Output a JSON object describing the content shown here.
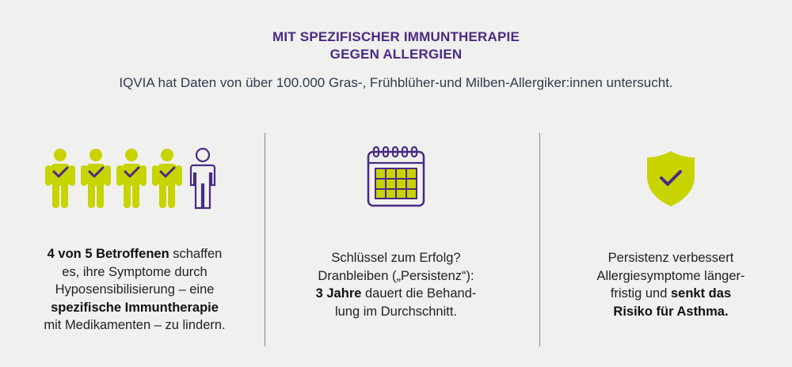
{
  "header": {
    "title_line1": "MIT SPEZIFISCHER IMMUNTHERAPIE",
    "title_line2": "GEGEN ALLERGIEN",
    "subtitle": "IQVIA hat Daten von über 100.000 Gras-, Frühblüher-und Milben-Allergiker:innen untersucht."
  },
  "columns": [
    {
      "icon": "people-icon",
      "lines": [
        [
          "",
          "4 von 5 Betroffenen",
          " schaffen"
        ],
        [
          "es, ihre Symptome durch",
          "",
          ""
        ],
        [
          "Hyposensibilisierung – eine",
          "",
          ""
        ],
        [
          "",
          "spezifische Immuntherapie",
          ""
        ],
        [
          "mit Medikamenten – zu lindern.",
          "",
          ""
        ]
      ]
    },
    {
      "icon": "calendar-icon",
      "lines": [
        [
          "Schlüssel zum Erfolg?",
          "",
          ""
        ],
        [
          "Dranbleiben („Persistenz“):",
          "",
          ""
        ],
        [
          "",
          "3 Jahre",
          " dauert die Behand-"
        ],
        [
          "lung im Durchschnitt.",
          "",
          ""
        ]
      ]
    },
    {
      "icon": "shield-check-icon",
      "lines": [
        [
          "Persistenz verbessert",
          "",
          ""
        ],
        [
          "Allergiesymptome länger-",
          "",
          ""
        ],
        [
          "fristig und ",
          "senkt das",
          ""
        ],
        [
          "",
          "Risiko für Asthma.",
          ""
        ]
      ]
    }
  ],
  "colors": {
    "accent_purple": "#4a2a84",
    "accent_lime": "#c8d400",
    "background": "#f0f0ee"
  }
}
